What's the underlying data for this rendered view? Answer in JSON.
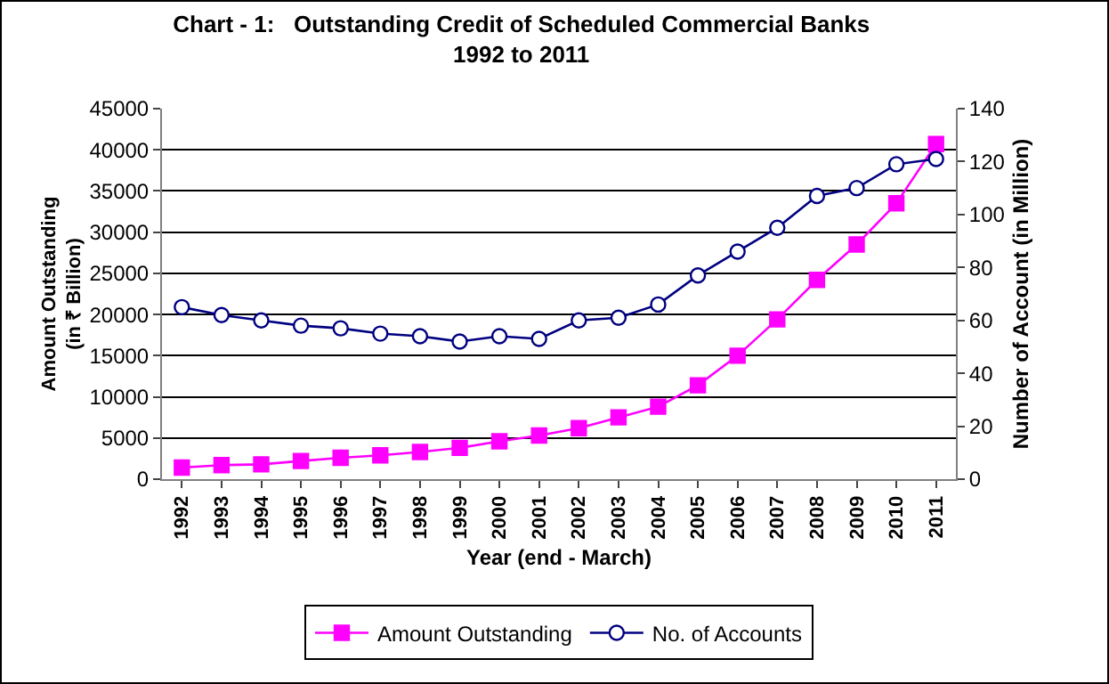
{
  "chart_data": {
    "type": "line",
    "title": "Chart - 1:   Outstanding Credit of Scheduled Commercial Banks\n1992 to 2011",
    "xlabel": "Year (end - March)",
    "ylabel": "Amount Outstanding\n(in ₹ Billion)",
    "y2label": "Number of Account (in Million)",
    "categories": [
      "1992",
      "1993",
      "1994",
      "1995",
      "1996",
      "1997",
      "1998",
      "1999",
      "2000",
      "2001",
      "2002",
      "2003",
      "2004",
      "2005",
      "2006",
      "2007",
      "2008",
      "2009",
      "2010",
      "2011"
    ],
    "series": [
      {
        "name": "Amount Outstanding",
        "color": "#ff00ff",
        "marker": "square",
        "values": [
          1400,
          1700,
          1800,
          2200,
          2600,
          2900,
          3300,
          3800,
          4600,
          5300,
          6200,
          7500,
          8800,
          11400,
          15000,
          19400,
          24200,
          28500,
          33500,
          40700
        ]
      },
      {
        "name": "No. of Accounts",
        "color": "#000080",
        "marker": "circle",
        "axis": "y2",
        "values": [
          65,
          62,
          60,
          58,
          57,
          55,
          54,
          52,
          54,
          53,
          60,
          61,
          66,
          77,
          86,
          95,
          107,
          110,
          119,
          121
        ]
      }
    ],
    "ylim": [
      0,
      45000
    ],
    "yticks": [
      0,
      5000,
      10000,
      15000,
      20000,
      25000,
      30000,
      35000,
      40000,
      45000
    ],
    "y2lim": [
      0,
      140
    ],
    "y2ticks": [
      0,
      20,
      40,
      60,
      80,
      100,
      120,
      140
    ],
    "grid": "y",
    "legend": "bottom"
  }
}
